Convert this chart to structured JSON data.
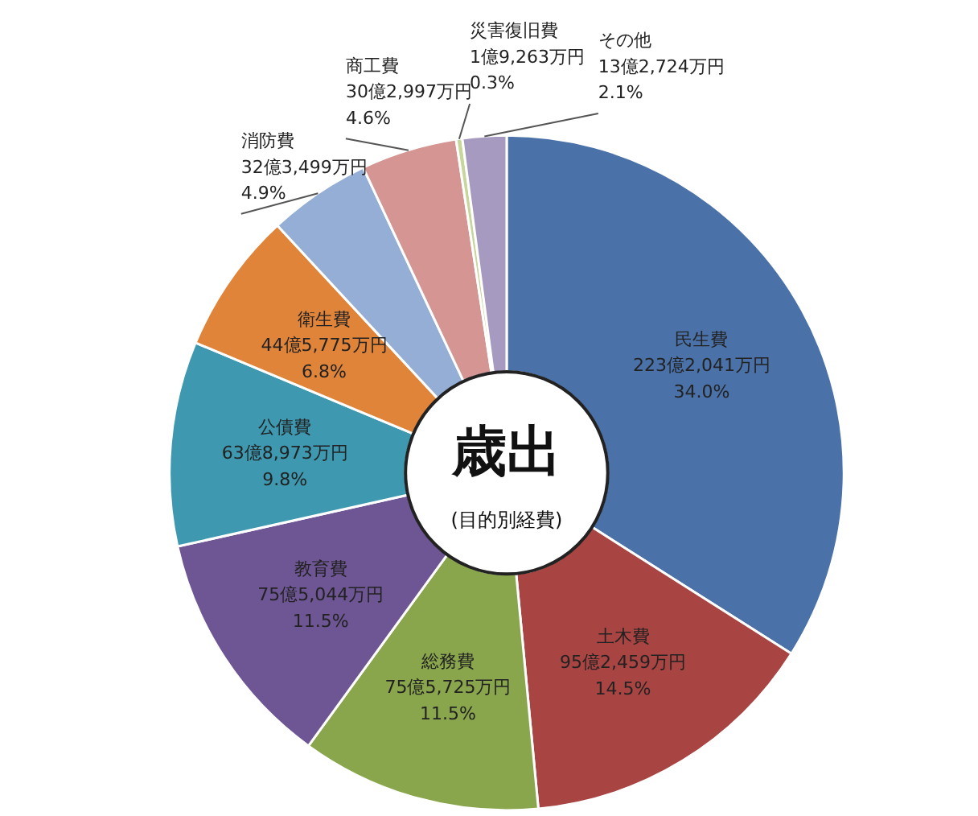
{
  "chart_data": {
    "type": "donut",
    "title": "歳出",
    "subtitle": "(目的別経費)",
    "categories": [
      "民生費",
      "土木費",
      "総務費",
      "教育費",
      "公債費",
      "衛生費",
      "消防費",
      "商工費",
      "災害復旧費",
      "その他"
    ],
    "values": [
      34.0,
      14.5,
      11.5,
      11.5,
      9.8,
      6.8,
      4.9,
      4.6,
      0.3,
      2.1
    ],
    "value_labels": [
      "223億2,041万円\n34.0%",
      "95億2,459万円\n14.5%",
      "75億5,725万円\n11.5%",
      "75億5,044万円\n11.5%",
      "63億8,973万円\n9.8%",
      "44億5,775万円\n6.8%",
      "32億3,499万円\n4.9%",
      "30億2,997万円\n4.6%",
      "1億9,263万円\n0.3%",
      "13億2,724万円\n2.1%"
    ],
    "colors": [
      "#4a72a8",
      "#a84442",
      "#8aa64c",
      "#6e5594",
      "#3d98b0",
      "#e0843a",
      "#95aed6",
      "#d49593",
      "#c6d69c",
      "#a69ac0"
    ]
  }
}
